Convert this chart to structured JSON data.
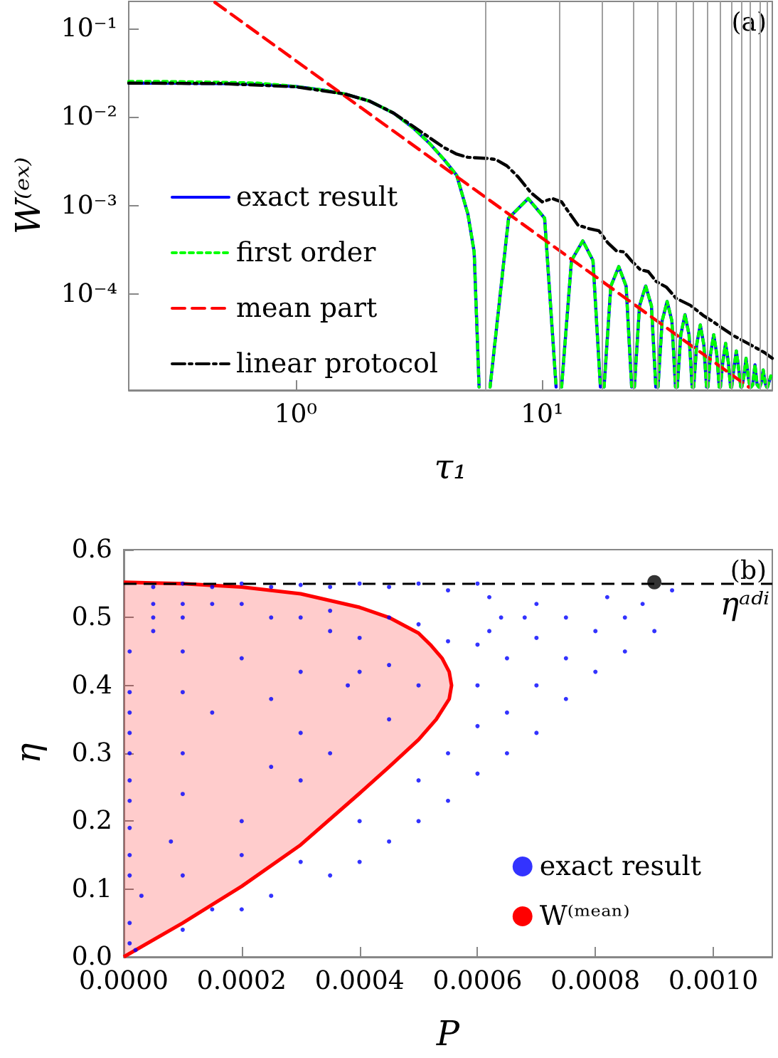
{
  "chart_data": [
    {
      "type": "line",
      "xlabel": "τ₁",
      "ylabel": "W⁽ᵉˣ⁾",
      "log": "xy",
      "legend": "bottom left",
      "annotations": [
        "(a)"
      ],
      "xlim": [
        0.21,
        86
      ],
      "ylim": [
        8.3e-06,
        0.2
      ],
      "xticks": [
        {
          "value": 1,
          "label": "10⁰"
        },
        {
          "value": 10,
          "label": "10¹"
        }
      ],
      "yticks": [
        {
          "value": 0.0001,
          "label": "10⁻⁴"
        },
        {
          "value": 0.001,
          "label": "10⁻³"
        },
        {
          "value": 0.01,
          "label": "10⁻²"
        },
        {
          "value": 0.1,
          "label": "10⁻¹"
        }
      ],
      "x": [
        0.21,
        0.3,
        0.5,
        0.7,
        1,
        1.3,
        1.6,
        2,
        2.5,
        3,
        3.5,
        4,
        4.5,
        5,
        5.3,
        5.55,
        5.85,
        6.15,
        7.31,
        8.78,
        10.24,
        11.4,
        11.7,
        12.0,
        13.16,
        14.63,
        16.09,
        17.25,
        17.55,
        17.85,
        19.01,
        20.48,
        21.94,
        23.1,
        23.4,
        23.7,
        24.86,
        26.33,
        27.79,
        28.95,
        29.25,
        29.55,
        30.71,
        32.18,
        33.64,
        34.8,
        35.1,
        35.4,
        36.56,
        38.03,
        39.49,
        40.65,
        40.95,
        41.25,
        42.41,
        43.88,
        45.34,
        46.5,
        46.8,
        47.1,
        48.26,
        49.73,
        51.19,
        52.35,
        52.65,
        52.95,
        54.11,
        55.58,
        57.04,
        58.2,
        58.5,
        58.8,
        59.96,
        61.43,
        62.89,
        64.05,
        64.35,
        64.65,
        65.81,
        67.28,
        68.74,
        69.9,
        70.2,
        70.5,
        71.66,
        73.13,
        74.59,
        75.75,
        76.05,
        76.35,
        77.51,
        78.98,
        80.44,
        81.6,
        81.9,
        82.2,
        84.83
      ],
      "series": [
        {
          "name": "exact result",
          "color": "#0000ff",
          "line_style": "solid",
          "values": [
            0.024,
            0.024,
            0.0238,
            0.0233,
            0.022,
            0.02,
            0.018,
            0.015,
            0.011,
            0.0075,
            0.005,
            0.0033,
            0.0022,
            0.0008,
            0.0003,
            9e-06,
            null,
            9e-06,
            0.00072,
            0.0012,
            0.00072,
            9e-06,
            null,
            9e-06,
            0.00024,
            0.0004,
            0.00024,
            9e-06,
            null,
            9e-06,
            0.000123,
            0.000205,
            0.000123,
            9e-06,
            null,
            9e-06,
            7.4e-05,
            0.000124,
            7.4e-05,
            9e-06,
            null,
            9e-06,
            5e-05,
            8.3e-05,
            5e-05,
            9e-06,
            null,
            9e-06,
            3.5e-05,
            5.9e-05,
            3.5e-05,
            9e-06,
            null,
            9e-06,
            2.7e-05,
            4.5e-05,
            2.7e-05,
            9e-06,
            null,
            9e-06,
            2.1e-05,
            3.5e-05,
            2.1e-05,
            9e-06,
            null,
            9e-06,
            1.7e-05,
            2.8e-05,
            1.7e-05,
            9e-06,
            null,
            9e-06,
            1.4e-05,
            2.3e-05,
            1.4e-05,
            9e-06,
            null,
            9e-06,
            1.14e-05,
            1.9e-05,
            1.14e-05,
            9e-06,
            null,
            9e-06,
            9.6e-06,
            1.6e-05,
            9.6e-06,
            9e-06,
            null,
            9e-06,
            1e-05,
            1.4e-05,
            1e-05,
            9e-06,
            null,
            9e-06,
            1.2e-05
          ]
        },
        {
          "name": "first order",
          "color": "#00ff00",
          "line_style": "dotted",
          "values": [
            0.025,
            0.025,
            0.0245,
            0.024,
            0.022,
            0.02,
            0.018,
            0.015,
            0.011,
            0.0075,
            0.005,
            0.0033,
            0.0022,
            0.0008,
            0.0003,
            9e-06,
            null,
            9e-06,
            0.00072,
            0.0012,
            0.00072,
            9e-06,
            null,
            9e-06,
            0.00024,
            0.0004,
            0.00024,
            9e-06,
            null,
            9e-06,
            0.000123,
            0.000205,
            0.000123,
            9e-06,
            null,
            9e-06,
            7.4e-05,
            0.000124,
            7.4e-05,
            9e-06,
            null,
            9e-06,
            5e-05,
            8.3e-05,
            5e-05,
            9e-06,
            null,
            9e-06,
            3.5e-05,
            5.9e-05,
            3.5e-05,
            9e-06,
            null,
            9e-06,
            2.7e-05,
            4.5e-05,
            2.7e-05,
            9e-06,
            null,
            9e-06,
            2.1e-05,
            3.5e-05,
            2.1e-05,
            9e-06,
            null,
            9e-06,
            1.7e-05,
            2.8e-05,
            1.7e-05,
            9e-06,
            null,
            9e-06,
            1.4e-05,
            2.3e-05,
            1.4e-05,
            9e-06,
            null,
            9e-06,
            1.14e-05,
            1.9e-05,
            1.14e-05,
            9e-06,
            null,
            9e-06,
            9.6e-06,
            1.6e-05,
            9.6e-06,
            9e-06,
            null,
            9e-06,
            1e-05,
            1.4e-05,
            1e-05,
            9e-06,
            null,
            9e-06,
            1.2e-05
          ]
        },
        {
          "name": "mean part",
          "color": "#ff0000",
          "line_style": "dashed",
          "x": [
            0.47,
            1,
            10,
            69
          ],
          "values": [
            0.195,
            0.043,
            0.00043,
            9e-06
          ]
        },
        {
          "name": "linear protocol",
          "color": "#000000",
          "line_style": "dashdot",
          "x": [
            0.21,
            0.5,
            1,
            1.6,
            2,
            2.5,
            3,
            3.5,
            4,
            4.5,
            5,
            6,
            6.5,
            7.2,
            8,
            9,
            10,
            11,
            12,
            13,
            14,
            15.5,
            17,
            18.5,
            20,
            21.5,
            23,
            25,
            27,
            29,
            32,
            35,
            40,
            45,
            50,
            55,
            60,
            70,
            80,
            86
          ],
          "values": [
            0.024,
            0.0237,
            0.0218,
            0.018,
            0.015,
            0.011,
            0.0078,
            0.0058,
            0.0045,
            0.0038,
            0.0035,
            0.0034,
            0.0033,
            0.0028,
            0.0021,
            0.0014,
            0.0011,
            0.0012,
            0.0011,
            0.0008,
            0.0006,
            0.00055,
            0.00052,
            0.00038,
            0.00031,
            0.0003,
            0.00024,
            0.00019,
            0.00018,
            0.00014,
            0.00012,
            9e-05,
            7.5e-05,
            5.8e-05,
            4.8e-05,
            4e-05,
            3.4e-05,
            2.7e-05,
            2.2e-05,
            1.9e-05
          ]
        }
      ],
      "ref_lines": [
        {
          "axis": "x",
          "value": 5.85,
          "color": "#a0a0a0"
        },
        {
          "axis": "x",
          "value": 11.7,
          "color": "#a0a0a0"
        },
        {
          "axis": "x",
          "value": 17.55,
          "color": "#a0a0a0"
        },
        {
          "axis": "x",
          "value": 23.4,
          "color": "#a0a0a0"
        },
        {
          "axis": "x",
          "value": 29.25,
          "color": "#a0a0a0"
        },
        {
          "axis": "x",
          "value": 35.1,
          "color": "#a0a0a0"
        },
        {
          "axis": "x",
          "value": 40.95,
          "color": "#a0a0a0"
        },
        {
          "axis": "x",
          "value": 46.8,
          "color": "#a0a0a0"
        },
        {
          "axis": "x",
          "value": 52.65,
          "color": "#a0a0a0"
        },
        {
          "axis": "x",
          "value": 58.5,
          "color": "#a0a0a0"
        },
        {
          "axis": "x",
          "value": 64.35,
          "color": "#a0a0a0"
        },
        {
          "axis": "x",
          "value": 70.2,
          "color": "#a0a0a0"
        },
        {
          "axis": "x",
          "value": 76.05,
          "color": "#a0a0a0"
        },
        {
          "axis": "x",
          "value": 81.9,
          "color": "#a0a0a0"
        }
      ]
    },
    {
      "type": "scatter",
      "xlabel": "P",
      "ylabel": "η",
      "legend": "bottom right",
      "annotations": [
        "(b)"
      ],
      "xlim": [
        0,
        0.0011
      ],
      "ylim": [
        0,
        0.6
      ],
      "xticks": [
        {
          "value": 0,
          "label": "0.0000"
        },
        {
          "value": 0.0002,
          "label": "0.0002"
        },
        {
          "value": 0.0004,
          "label": "0.0004"
        },
        {
          "value": 0.0006,
          "label": "0.0006"
        },
        {
          "value": 0.0008,
          "label": "0.0008"
        },
        {
          "value": 0.001,
          "label": "0.0010"
        }
      ],
      "yticks": [
        {
          "value": 0,
          "label": "0.0"
        },
        0.1,
        0.2,
        0.3,
        0.4,
        0.5,
        0.6
      ],
      "series": [
        {
          "name": "exact result",
          "color": "#0000ff",
          "marker": "circle",
          "x": [
            5e-05,
            0.0001,
            0.00015,
            0.0002,
            0.00025,
            0.0003,
            0.00035,
            0.0004,
            0.00045,
            0.0005,
            0.00055,
            0.0006,
            0.00062,
            0.00064,
            0.00062,
            0.0006,
            0.00055,
            0.0005,
            0.00045,
            0.0004,
            0.00035,
            5e-05,
            5e-05,
            5e-05,
            0.0001,
            0.0001,
            0.00015,
            0.0002,
            0.00025,
            0.0003,
            0.00035,
            1e-05,
            0.0001,
            0.0002,
            0.0003,
            1e-05,
            0.0001,
            0.00025,
            0.00038,
            1e-05,
            0.00015,
            0.0003,
            1e-05,
            0.0001,
            1e-05,
            0.00025,
            1e-05,
            0.0001,
            0.0002,
            1e-05,
            1e-05,
            8e-05,
            0.0001,
            1e-05,
            1e-05,
            3e-05,
            1e-05,
            1e-05,
            2e-05,
            0.0003,
            0.00035,
            0.00045,
            0.0004,
            0.00015,
            0.0002,
            0.00045,
            0.0005,
            0.0003,
            0.0004,
            0.0005,
            0.00055,
            0.0006,
            0.00065,
            0.0007,
            0.0006,
            0.00065,
            0.0007,
            0.00075,
            0.0008,
            0.00085,
            0.0009,
            0.00088,
            0.00093,
            0.0009,
            0.00082,
            0.00075,
            0.0007,
            0.0008,
            0.00075,
            0.0007,
            0.00065,
            0.0006,
            0.00055,
            0.0005,
            0.00045,
            0.0004,
            0.00035,
            0.00025,
            0.0002,
            0.0001,
            0.00085,
            0.00068
          ],
          "values": [
            0.545,
            0.55,
            0.545,
            0.55,
            0.545,
            0.548,
            0.545,
            0.55,
            0.545,
            0.55,
            0.54,
            0.55,
            0.53,
            0.5,
            0.48,
            0.46,
            0.465,
            0.49,
            0.5,
            0.47,
            0.48,
            0.52,
            0.5,
            0.48,
            0.52,
            0.5,
            0.52,
            0.52,
            0.5,
            0.5,
            0.51,
            0.45,
            0.45,
            0.44,
            0.42,
            0.39,
            0.39,
            0.38,
            0.4,
            0.36,
            0.36,
            0.33,
            0.33,
            0.3,
            0.3,
            0.28,
            0.26,
            0.24,
            0.2,
            0.23,
            0.19,
            0.17,
            0.12,
            0.15,
            0.12,
            0.09,
            0.05,
            0.02,
            0.01,
            0.26,
            0.3,
            0.35,
            0.42,
            0.07,
            0.15,
            0.43,
            0.4,
            0.14,
            0.2,
            0.26,
            0.3,
            0.34,
            0.36,
            0.4,
            0.4,
            0.44,
            0.47,
            0.44,
            0.48,
            0.5,
            0.48,
            0.52,
            0.54,
            null,
            0.53,
            0.5,
            0.52,
            0.42,
            0.38,
            0.33,
            0.3,
            0.27,
            0.23,
            0.2,
            0.17,
            0.14,
            0.12,
            0.09,
            0.07,
            0.04,
            0.45,
            0.5
          ]
        },
        {
          "name": "W⁽ᵐᵉᵃⁿ⁾",
          "type": "area",
          "color": "#ff0000",
          "x": [
            0,
            0.0001,
            0.0002,
            0.0003,
            0.0004,
            0.00045,
            0.0005,
            0.00053,
            0.000552,
            0.000556,
            0.000552,
            0.00054,
            0.00052,
            0.0005,
            0.00045,
            0.0004,
            0.0003,
            0.0002,
            0.0001,
            0
          ],
          "values": [
            0,
            0.05,
            0.104,
            0.165,
            0.241,
            0.28,
            0.32,
            0.35,
            0.38,
            0.4,
            0.42,
            0.44,
            0.46,
            0.477,
            0.5,
            0.515,
            0.535,
            0.545,
            0.55,
            0.552
          ]
        },
        {
          "color": "#000000",
          "marker": "circle",
          "x": [
            0.0009
          ],
          "values": [
            0.552
          ]
        }
      ],
      "ref_lines": [
        {
          "axis": "y",
          "value": 0.552,
          "label": "ηᵃᵈⁱ",
          "color": "#000000",
          "line_style": "dashed"
        }
      ]
    }
  ]
}
